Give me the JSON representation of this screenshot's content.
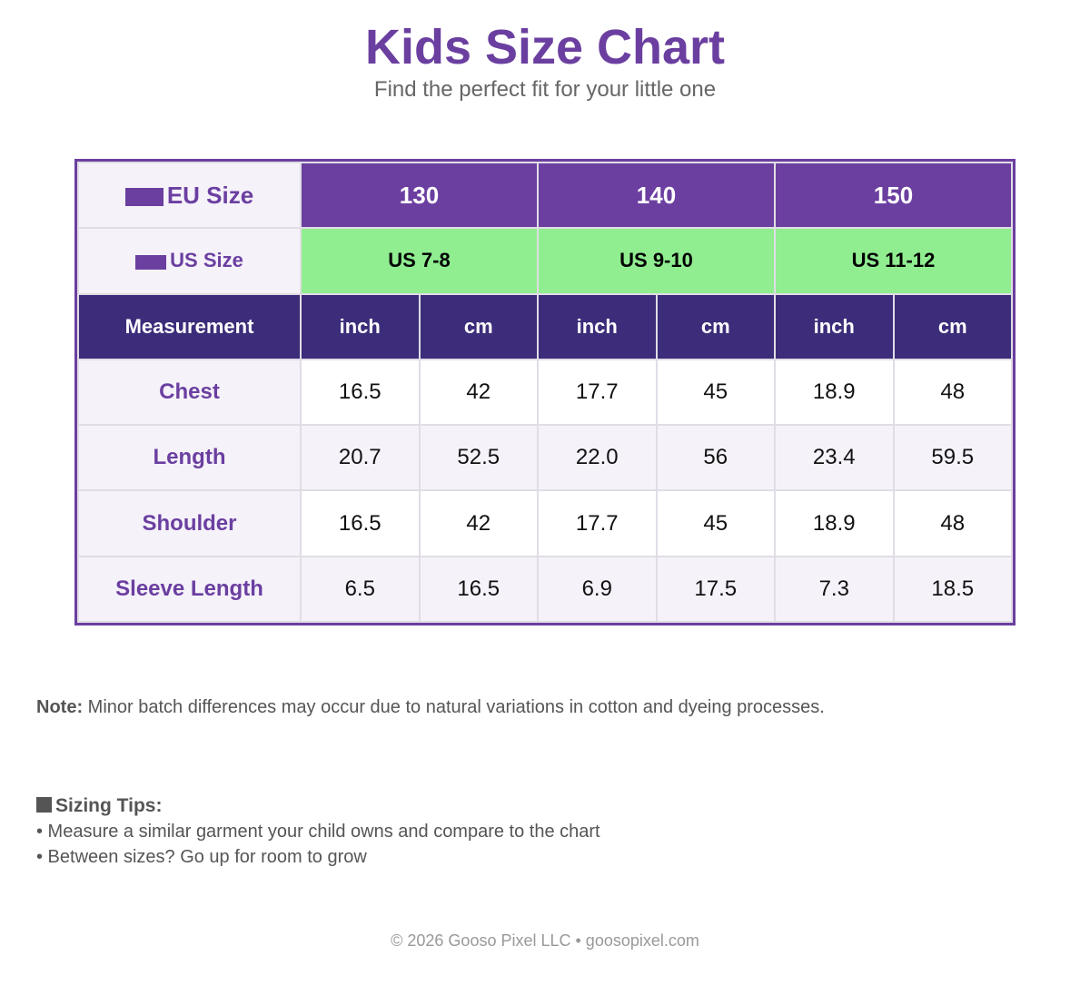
{
  "header": {
    "title": "Kids Size Chart",
    "subtitle": "Find the perfect fit for your little one"
  },
  "table": {
    "eu_label": "EU Size",
    "eu_sizes": [
      "130",
      "140",
      "150"
    ],
    "us_label": "US Size",
    "us_sizes": [
      "US 7-8",
      "US 9-10",
      "US 11-12"
    ],
    "measurement_label": "Measurement",
    "units": [
      "inch",
      "cm",
      "inch",
      "cm",
      "inch",
      "cm"
    ],
    "rows": [
      {
        "label": "Chest",
        "values": [
          "16.5",
          "42",
          "17.7",
          "45",
          "18.9",
          "48"
        ]
      },
      {
        "label": "Length",
        "values": [
          "20.7",
          "52.5",
          "22.0",
          "56",
          "23.4",
          "59.5"
        ]
      },
      {
        "label": "Shoulder",
        "values": [
          "16.5",
          "42",
          "17.7",
          "45",
          "18.9",
          "48"
        ]
      },
      {
        "label": "Sleeve Length",
        "values": [
          "6.5",
          "16.5",
          "6.9",
          "17.5",
          "7.3",
          "18.5"
        ]
      }
    ]
  },
  "note": {
    "label": "Note:",
    "text": " Minor batch differences may occur due to natural variations in cotton and dyeing processes."
  },
  "tips": {
    "title": "Sizing Tips:",
    "items": [
      "• Measure a similar garment your child owns and compare to the chart",
      "• Between sizes? Go up for room to grow"
    ]
  },
  "footer": {
    "text": "© 2026 Gooso Pixel LLC • goosopixel.com"
  },
  "colors": {
    "brand_purple": "#6b3fa0",
    "header_dark": "#3d2c7a",
    "us_green": "#90ee90",
    "row_tint": "#f5f2fa"
  }
}
